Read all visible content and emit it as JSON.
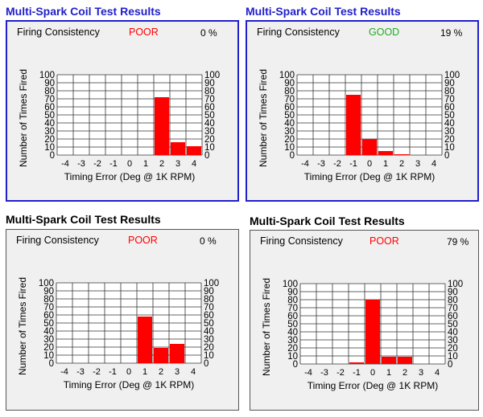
{
  "colors": {
    "poor": "#ff0000",
    "good": "#22aa22",
    "bar": "#ff0000",
    "selected_border": "#1f1fcc",
    "title_selected": "#1f1fcc"
  },
  "panels": [
    {
      "title": "Multi-Spark Coil Test Results",
      "selected": true,
      "label": "Firing  Consistency",
      "status": "POOR",
      "status_kind": "poor",
      "percent": "0 %",
      "chart_data": {
        "type": "bar",
        "categories": [
          "-4",
          "-3",
          "-2",
          "-1",
          "0",
          "1",
          "2",
          "3",
          "4"
        ],
        "values": [
          0,
          0,
          0,
          0,
          0,
          0,
          72,
          16,
          11
        ],
        "xlabel": "Timing Error (Deg @ 1K RPM)",
        "ylabel": "Number of Times Fired",
        "ylim": [
          0,
          100
        ],
        "yticks": [
          "100",
          "90",
          "80",
          "70",
          "60",
          "50",
          "40",
          "30",
          "20",
          "10",
          "0"
        ]
      }
    },
    {
      "title": "Multi-Spark Coil Test Results",
      "selected": true,
      "label": "Firing  Consistency",
      "status": "GOOD",
      "status_kind": "good",
      "percent": "19 %",
      "chart_data": {
        "type": "bar",
        "categories": [
          "-4",
          "-3",
          "-2",
          "-1",
          "0",
          "1",
          "2",
          "3",
          "4"
        ],
        "values": [
          0,
          0,
          0,
          75,
          20,
          5,
          1,
          0,
          0
        ],
        "xlabel": "Timing Error (Deg @ 1K RPM)",
        "ylabel": "Number of Times Fired",
        "ylim": [
          0,
          100
        ],
        "yticks": [
          "100",
          "90",
          "80",
          "70",
          "60",
          "50",
          "40",
          "30",
          "20",
          "10",
          "0"
        ]
      }
    },
    {
      "title": "Multi-Spark Coil Test Results",
      "selected": false,
      "label": "Firing  Consistency",
      "status": "POOR",
      "status_kind": "poor",
      "percent": "0 %",
      "chart_data": {
        "type": "bar",
        "categories": [
          "-4",
          "-3",
          "-2",
          "-1",
          "0",
          "1",
          "2",
          "3",
          "4"
        ],
        "values": [
          0,
          0,
          0,
          0,
          0,
          58,
          19,
          24,
          0
        ],
        "xlabel": "Timing Error (Deg @ 1K RPM)",
        "ylabel": "Number of Times Fired",
        "ylim": [
          0,
          100
        ],
        "yticks": [
          "100",
          "90",
          "80",
          "70",
          "60",
          "50",
          "40",
          "30",
          "20",
          "10",
          "0"
        ]
      }
    },
    {
      "title": "Multi-Spark Coil Test Results",
      "selected": false,
      "label": "Firing  Consistency",
      "status": "POOR",
      "status_kind": "poor",
      "percent": "79 %",
      "chart_data": {
        "type": "bar",
        "categories": [
          "-4",
          "-3",
          "-2",
          "-1",
          "0",
          "1",
          "2",
          "3",
          "4"
        ],
        "values": [
          0,
          0,
          0,
          2,
          80,
          9,
          9,
          0,
          0
        ],
        "xlabel": "Timing Error (Deg @ 1K RPM)",
        "ylabel": "Number of Times Fired",
        "ylim": [
          0,
          100
        ],
        "yticks": [
          "100",
          "90",
          "80",
          "70",
          "60",
          "50",
          "40",
          "30",
          "20",
          "10",
          "0"
        ]
      }
    }
  ]
}
